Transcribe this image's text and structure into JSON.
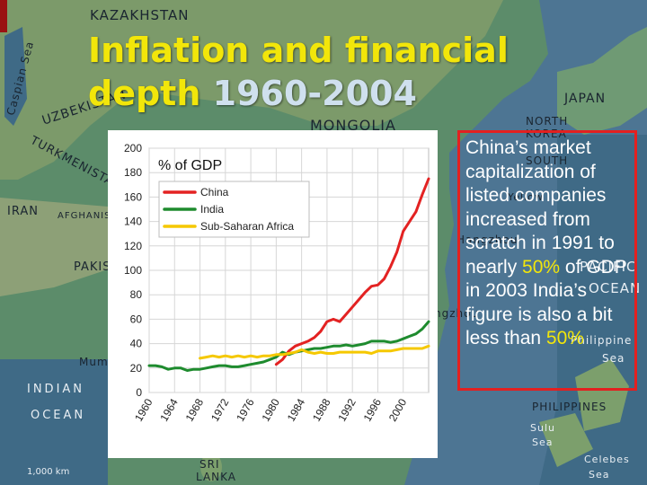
{
  "slide": {
    "title_part1": "Inflation and financial depth ",
    "title_years": "1960-2004"
  },
  "map_labels": [
    {
      "name": "kazakhstan",
      "text": "KAZAKHSTAN"
    },
    {
      "name": "mongolia",
      "text": "MONGOLIA"
    },
    {
      "name": "uzbekistan",
      "text": "UZBEKISTAN"
    },
    {
      "name": "turkmenistan",
      "text": "TURKMENISTAN"
    },
    {
      "name": "caspian-sea",
      "text": "Caspian Sea"
    },
    {
      "name": "iran",
      "text": "IRAN"
    },
    {
      "name": "afghanistan",
      "text": "AFGHANIS"
    },
    {
      "name": "pakistan",
      "text": "PAKIS"
    },
    {
      "name": "japan",
      "text": "JAPAN"
    },
    {
      "name": "north-korea",
      "text": "NORTH KOREA"
    },
    {
      "name": "south",
      "text": "SOUTH"
    },
    {
      "name": "yellow",
      "text": "Yellow"
    },
    {
      "name": "hangzhou",
      "text": "Hangzhou"
    },
    {
      "name": "pacific",
      "text": "PACIFIC"
    },
    {
      "name": "ocean-pacific",
      "text": "OCEAN"
    },
    {
      "name": "guangzhou",
      "text": "ngzhou"
    },
    {
      "name": "philippine",
      "text": "Philippine"
    },
    {
      "name": "sea-philippine",
      "text": "Sea"
    },
    {
      "name": "mumbai",
      "text": "Mumb"
    },
    {
      "name": "indian",
      "text": "INDIAN"
    },
    {
      "name": "ocean-indian",
      "text": "OCEAN"
    },
    {
      "name": "philippines",
      "text": "PHILIPPINES"
    },
    {
      "name": "sulu-sea",
      "text": "Sulu"
    },
    {
      "name": "sulu-sea2",
      "text": "Sea"
    },
    {
      "name": "celebes",
      "text": "Celebes"
    },
    {
      "name": "celebes-sea",
      "text": "Sea"
    },
    {
      "name": "sri-lanka",
      "text": "SRI"
    },
    {
      "name": "sri-lanka2",
      "text": "LANKA"
    },
    {
      "name": "scale",
      "text": "1,000 km"
    }
  ],
  "callout": {
    "p1": "China’s market capitalization of listed companies increased from scratch in 1991 to nearly ",
    "p1_highlight": "50%",
    "p2": " of GDP in 2003 India’s figure is also a bit less than ",
    "p2_highlight": "50%"
  },
  "colors": {
    "title": "#f2e60a",
    "title_years": "#cfe0ee",
    "callout_border": "#e32020",
    "china": "#e32222",
    "india": "#1e8b2e",
    "africa": "#f5c800"
  },
  "chart_data": {
    "type": "line",
    "annotation": "% of GDP",
    "ylim": [
      0,
      200
    ],
    "yticks": [
      0,
      20,
      40,
      60,
      80,
      100,
      120,
      140,
      160,
      180,
      200
    ],
    "xlim": [
      1960,
      2004
    ],
    "xticks": [
      1960,
      1964,
      1968,
      1972,
      1976,
      1980,
      1984,
      1988,
      1992,
      1996,
      2000
    ],
    "legend_position": "top-left",
    "grid": true,
    "series": [
      {
        "name": "China",
        "color": "#e32222",
        "x": [
          1980,
          1981,
          1982,
          1983,
          1984,
          1985,
          1986,
          1987,
          1988,
          1989,
          1990,
          1991,
          1992,
          1993,
          1994,
          1995,
          1996,
          1997,
          1998,
          1999,
          2000,
          2001,
          2002,
          2003,
          2004
        ],
        "y": [
          23,
          27,
          34,
          38,
          40,
          42,
          45,
          50,
          58,
          60,
          58,
          64,
          70,
          76,
          82,
          87,
          88,
          93,
          103,
          115,
          132,
          140,
          148,
          162,
          175
        ]
      },
      {
        "name": "India",
        "color": "#1e8b2e",
        "x": [
          1960,
          1961,
          1962,
          1963,
          1964,
          1965,
          1966,
          1967,
          1968,
          1969,
          1970,
          1971,
          1972,
          1973,
          1974,
          1975,
          1976,
          1977,
          1978,
          1979,
          1980,
          1981,
          1982,
          1983,
          1984,
          1985,
          1986,
          1987,
          1988,
          1989,
          1990,
          1991,
          1992,
          1993,
          1994,
          1995,
          1996,
          1997,
          1998,
          1999,
          2000,
          2001,
          2002,
          2003,
          2004
        ],
        "y": [
          22,
          22,
          21,
          19,
          20,
          20,
          18,
          19,
          19,
          20,
          21,
          22,
          22,
          21,
          21,
          22,
          23,
          24,
          25,
          27,
          29,
          33,
          31,
          33,
          34,
          35,
          36,
          36,
          37,
          38,
          38,
          39,
          38,
          39,
          40,
          42,
          42,
          42,
          41,
          42,
          44,
          46,
          48,
          52,
          58
        ]
      },
      {
        "name": "Sub-Saharan Africa",
        "color": "#f5c800",
        "x": [
          1968,
          1969,
          1970,
          1971,
          1972,
          1973,
          1974,
          1975,
          1976,
          1977,
          1978,
          1979,
          1980,
          1981,
          1982,
          1983,
          1984,
          1985,
          1986,
          1987,
          1988,
          1989,
          1990,
          1991,
          1992,
          1993,
          1994,
          1995,
          1996,
          1997,
          1998,
          1999,
          2000,
          2001,
          2002,
          2003,
          2004
        ],
        "y": [
          28,
          29,
          30,
          29,
          30,
          29,
          30,
          29,
          30,
          29,
          30,
          30,
          31,
          31,
          32,
          33,
          35,
          33,
          32,
          33,
          32,
          32,
          33,
          33,
          33,
          33,
          33,
          32,
          34,
          34,
          34,
          35,
          36,
          36,
          36,
          36,
          38
        ]
      }
    ]
  }
}
